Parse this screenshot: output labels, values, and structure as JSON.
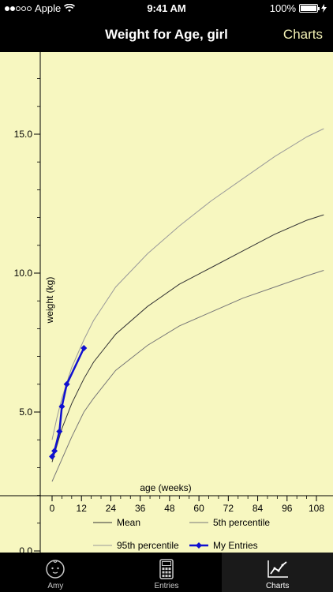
{
  "status_bar": {
    "carrier": "Apple",
    "time": "9:41 AM",
    "battery": "100%",
    "signal_dots_filled": 2,
    "signal_dots_total": 5
  },
  "nav": {
    "title": "Weight for Age, girl",
    "right_button": "Charts"
  },
  "tabs": [
    {
      "label": "Amy",
      "icon": "baby-face-icon"
    },
    {
      "label": "Entries",
      "icon": "calculator-icon"
    },
    {
      "label": "Charts",
      "icon": "chart-icon"
    }
  ],
  "colors": {
    "chart_bg": "#f7f7c0",
    "mean": "#333333",
    "percentile5": "#777777",
    "percentile95": "#999999",
    "entries": "#1010d0"
  },
  "chart_data": {
    "type": "line",
    "xlabel": "age (weeks)",
    "ylabel": "weight (kg)",
    "x_ticks": [
      0,
      12,
      24,
      36,
      48,
      60,
      72,
      84,
      96,
      108
    ],
    "x_tick_labels": [
      "0",
      "12",
      "24",
      "36",
      "48",
      "60",
      "72",
      "84",
      "96",
      "108"
    ],
    "y_ticks": [
      0.0,
      5.0,
      10.0,
      15.0
    ],
    "y_tick_labels": [
      "0.0",
      "5.0",
      "10.0",
      "15.0"
    ],
    "xlim": [
      -9,
      111
    ],
    "ylim": [
      0,
      17.5
    ],
    "legend_position": "bottom",
    "series": [
      {
        "name": "Mean",
        "x": [
          0,
          2,
          4,
          8,
          13,
          17,
          26,
          39,
          52,
          65,
          78,
          91,
          104,
          111
        ],
        "y": [
          3.2,
          3.8,
          4.4,
          5.3,
          6.2,
          6.8,
          7.8,
          8.8,
          9.6,
          10.2,
          10.8,
          11.4,
          11.9,
          12.1
        ]
      },
      {
        "name": "5th percentile",
        "x": [
          0,
          2,
          4,
          8,
          13,
          17,
          26,
          39,
          52,
          65,
          78,
          91,
          104,
          111
        ],
        "y": [
          2.5,
          2.9,
          3.3,
          4.1,
          5.0,
          5.5,
          6.5,
          7.4,
          8.1,
          8.6,
          9.1,
          9.5,
          9.9,
          10.1
        ]
      },
      {
        "name": "95th percentile",
        "x": [
          0,
          2,
          4,
          8,
          13,
          17,
          26,
          39,
          52,
          65,
          78,
          91,
          104,
          111
        ],
        "y": [
          4.0,
          4.8,
          5.5,
          6.6,
          7.6,
          8.3,
          9.5,
          10.7,
          11.7,
          12.6,
          13.4,
          14.2,
          14.9,
          15.2
        ]
      },
      {
        "name": "My Entries",
        "x": [
          0,
          1,
          3,
          4,
          6,
          13
        ],
        "y": [
          3.4,
          3.6,
          4.3,
          5.2,
          6.0,
          7.3
        ]
      }
    ]
  }
}
